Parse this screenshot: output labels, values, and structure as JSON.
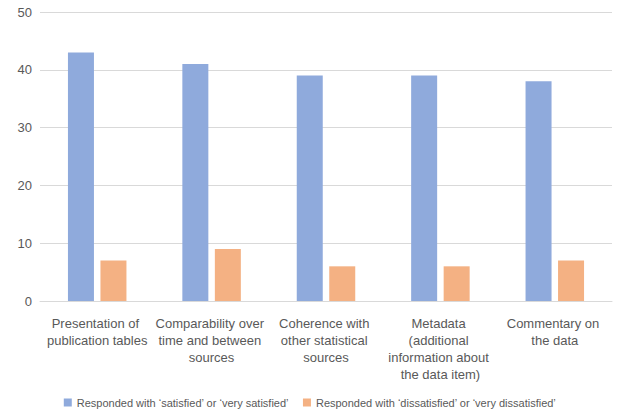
{
  "chart_data": {
    "type": "bar",
    "categories": [
      "Presentation of publication tables",
      "Comparability over time and between sources",
      "Coherence with other statistical sources",
      "Metadata (additional information about the data item)",
      "Commentary on the data"
    ],
    "series": [
      {
        "name": "Responded with ‘satisfied’ or ‘very satisfied’",
        "color": "#8faadc",
        "values": [
          43,
          41,
          39,
          39,
          38
        ]
      },
      {
        "name": "Responded with ‘dissatisfied’ or ‘very dissatisfied’",
        "color": "#f4b183",
        "values": [
          7,
          9,
          6,
          6,
          7
        ]
      }
    ],
    "ylim": [
      0,
      50
    ],
    "yticks": [
      0,
      10,
      20,
      30,
      40,
      50
    ],
    "grid": true,
    "legend": "bottom"
  }
}
